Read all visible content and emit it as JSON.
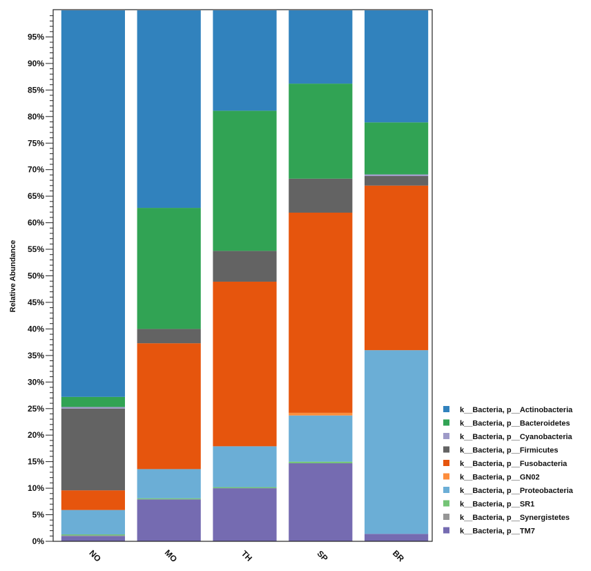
{
  "chart_data": {
    "type": "bar",
    "stacked": true,
    "title": "",
    "xlabel": "",
    "ylabel": "Relative Abundance",
    "ylim": [
      0,
      100
    ],
    "y_tick_step": 5,
    "y_tick_format": "percent",
    "y_ticks": [
      "0%",
      "5%",
      "10%",
      "15%",
      "20%",
      "25%",
      "30%",
      "35%",
      "40%",
      "45%",
      "50%",
      "55%",
      "60%",
      "65%",
      "70%",
      "75%",
      "80%",
      "85%",
      "90%",
      "95%"
    ],
    "grid": false,
    "legend_position": "bottom-right",
    "categories": [
      "NO",
      "MO",
      "TH",
      "SP",
      "BR"
    ],
    "series": [
      {
        "name": "k__Bacteria, p__TM7",
        "color": "#756bb1",
        "values": [
          1.0,
          7.9,
          10.0,
          14.7,
          1.4
        ]
      },
      {
        "name": "k__Bacteria, p__Synergistetes",
        "color": "#969696",
        "values": [
          0.1,
          0.0,
          0.0,
          0.0,
          0.0
        ]
      },
      {
        "name": "k__Bacteria, p__SR1",
        "color": "#74c476",
        "values": [
          0.2,
          0.2,
          0.2,
          0.3,
          0.0
        ]
      },
      {
        "name": "k__Bacteria, p__Proteobacteria",
        "color": "#6baed6",
        "values": [
          4.6,
          5.5,
          7.7,
          8.7,
          34.6
        ]
      },
      {
        "name": "k__Bacteria, p__GN02",
        "color": "#fd8d3c",
        "values": [
          0.0,
          0.0,
          0.0,
          0.5,
          0.0
        ]
      },
      {
        "name": "k__Bacteria, p__Fusobacteria",
        "color": "#e6550d",
        "values": [
          3.7,
          23.7,
          31.0,
          37.7,
          31.0
        ]
      },
      {
        "name": "k__Bacteria, p__Firmicutes",
        "color": "#636363",
        "values": [
          15.4,
          2.7,
          5.8,
          6.4,
          1.8
        ]
      },
      {
        "name": "k__Bacteria, p__Cyanobacteria",
        "color": "#9e9ac8",
        "values": [
          0.3,
          0.0,
          0.0,
          0.0,
          0.3
        ]
      },
      {
        "name": "k__Bacteria, p__Bacteroidetes",
        "color": "#31a354",
        "values": [
          1.9,
          22.8,
          26.4,
          17.9,
          9.8
        ]
      },
      {
        "name": "k__Bacteria, p__Actinobacteria",
        "color": "#3182bd",
        "values": [
          72.8,
          37.2,
          18.9,
          13.8,
          21.1
        ]
      }
    ],
    "legend_order": [
      "k__Bacteria, p__Actinobacteria",
      "k__Bacteria, p__Bacteroidetes",
      "k__Bacteria, p__Cyanobacteria",
      "k__Bacteria, p__Firmicutes",
      "k__Bacteria, p__Fusobacteria",
      "k__Bacteria, p__GN02",
      "k__Bacteria, p__Proteobacteria",
      "k__Bacteria, p__SR1",
      "k__Bacteria, p__Synergistetes",
      "k__Bacteria, p__TM7"
    ]
  }
}
